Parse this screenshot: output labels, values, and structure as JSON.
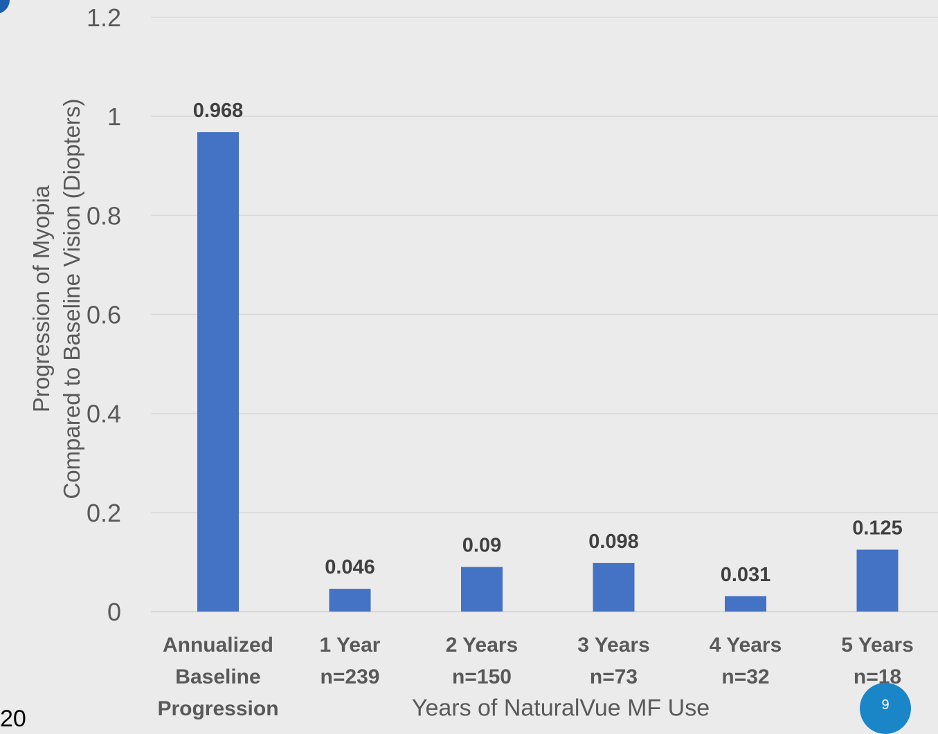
{
  "chart_data": {
    "type": "bar",
    "categories": [
      [
        "Annualized",
        "Baseline",
        "Progression"
      ],
      [
        "1 Year",
        "n=239"
      ],
      [
        "2 Years",
        "n=150"
      ],
      [
        "3 Years",
        "n=73"
      ],
      [
        "4 Years",
        "n=32"
      ],
      [
        "5 Years",
        "n=18"
      ]
    ],
    "values": [
      0.968,
      0.046,
      0.09,
      0.098,
      0.031,
      0.125
    ],
    "data_labels": [
      "0.968",
      "0.046",
      "0.09",
      "0.098",
      "0.031",
      "0.125"
    ],
    "y_ticks": [
      "0",
      "0.2",
      "0.4",
      "0.6",
      "0.8",
      "1",
      "1.2"
    ],
    "ylim": [
      0,
      1.2
    ],
    "ylabel": "Progression of Myopia\nCompared to Baseline Vision (Diopters)",
    "xlabel": "Years of NaturalVue MF Use",
    "grid": true,
    "bar_color": "#4472c4"
  },
  "slide": {
    "page_number": "9",
    "corner_text": "20"
  }
}
